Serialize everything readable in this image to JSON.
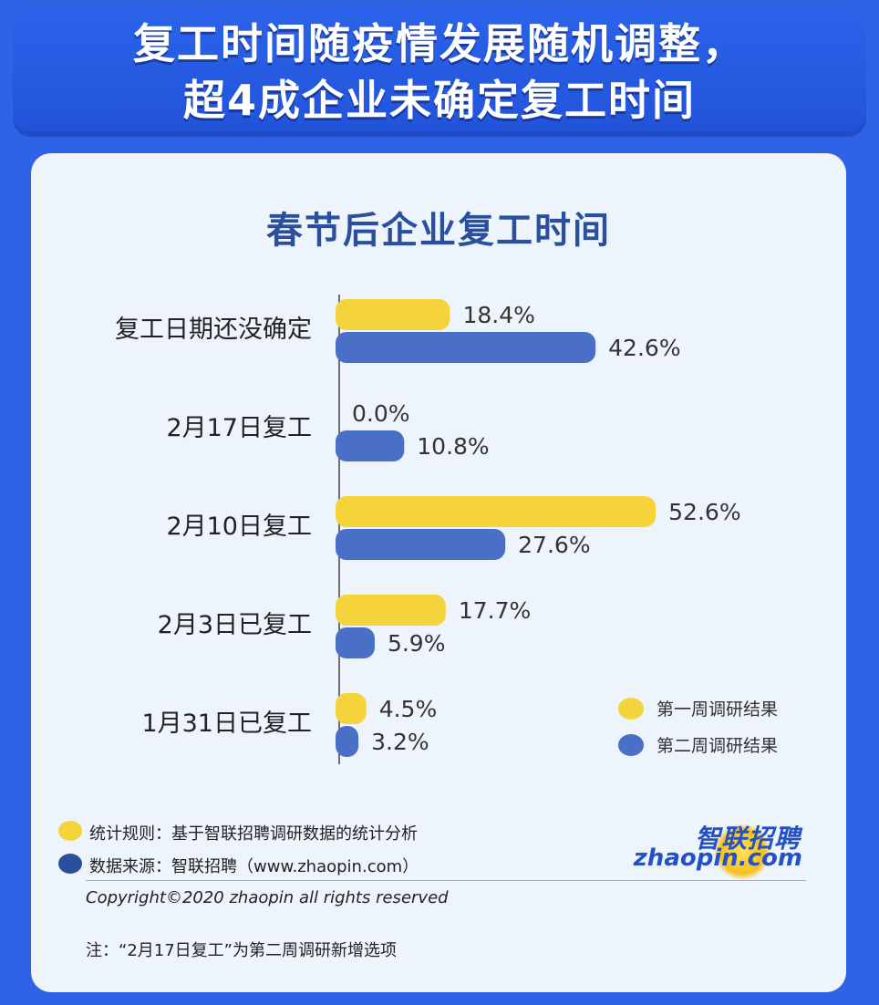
{
  "headline": {
    "line1": "复工时间随疫情发展随机调整，",
    "line2": "超4成企业未确定复工时间"
  },
  "colors": {
    "background": "#2f63e6",
    "card": "#eef4fc",
    "series_week1": "#f5d33a",
    "series_week2": "#4a6fc7",
    "title": "#2a4f9c"
  },
  "chart_data": {
    "type": "bar",
    "orientation": "horizontal",
    "title": "春节后企业复工时间",
    "categories": [
      "复工日期还没确定",
      "2月17日复工",
      "2月10日复工",
      "2月3日已复工",
      "1月31日已复工"
    ],
    "series": [
      {
        "name": "第一周调研结果",
        "values": [
          18.4,
          0.0,
          52.6,
          17.7,
          4.5
        ],
        "labels": [
          "18.4%",
          "0.0%",
          "52.6%",
          "17.7%",
          "4.5%"
        ]
      },
      {
        "name": "第二周调研结果",
        "values": [
          42.6,
          10.8,
          27.6,
          5.9,
          3.2
        ],
        "labels": [
          "42.6%",
          "10.8%",
          "27.6%",
          "5.9%",
          "3.2%"
        ]
      }
    ],
    "legend_position": "bottom-right",
    "xlim": [
      0,
      60
    ]
  },
  "footer": {
    "rule_text": "统计规则：基于智联招聘调研数据的统计分析",
    "source_text": "数据来源：智联招聘（www.zhaopin.com）",
    "copyright": "Copyright©2020 zhaopin all rights reserved",
    "note": "注：“2月17日复工”为第二周调研新增选项"
  },
  "logo": {
    "cn": "智联招聘",
    "en": "zhaopin.com"
  }
}
